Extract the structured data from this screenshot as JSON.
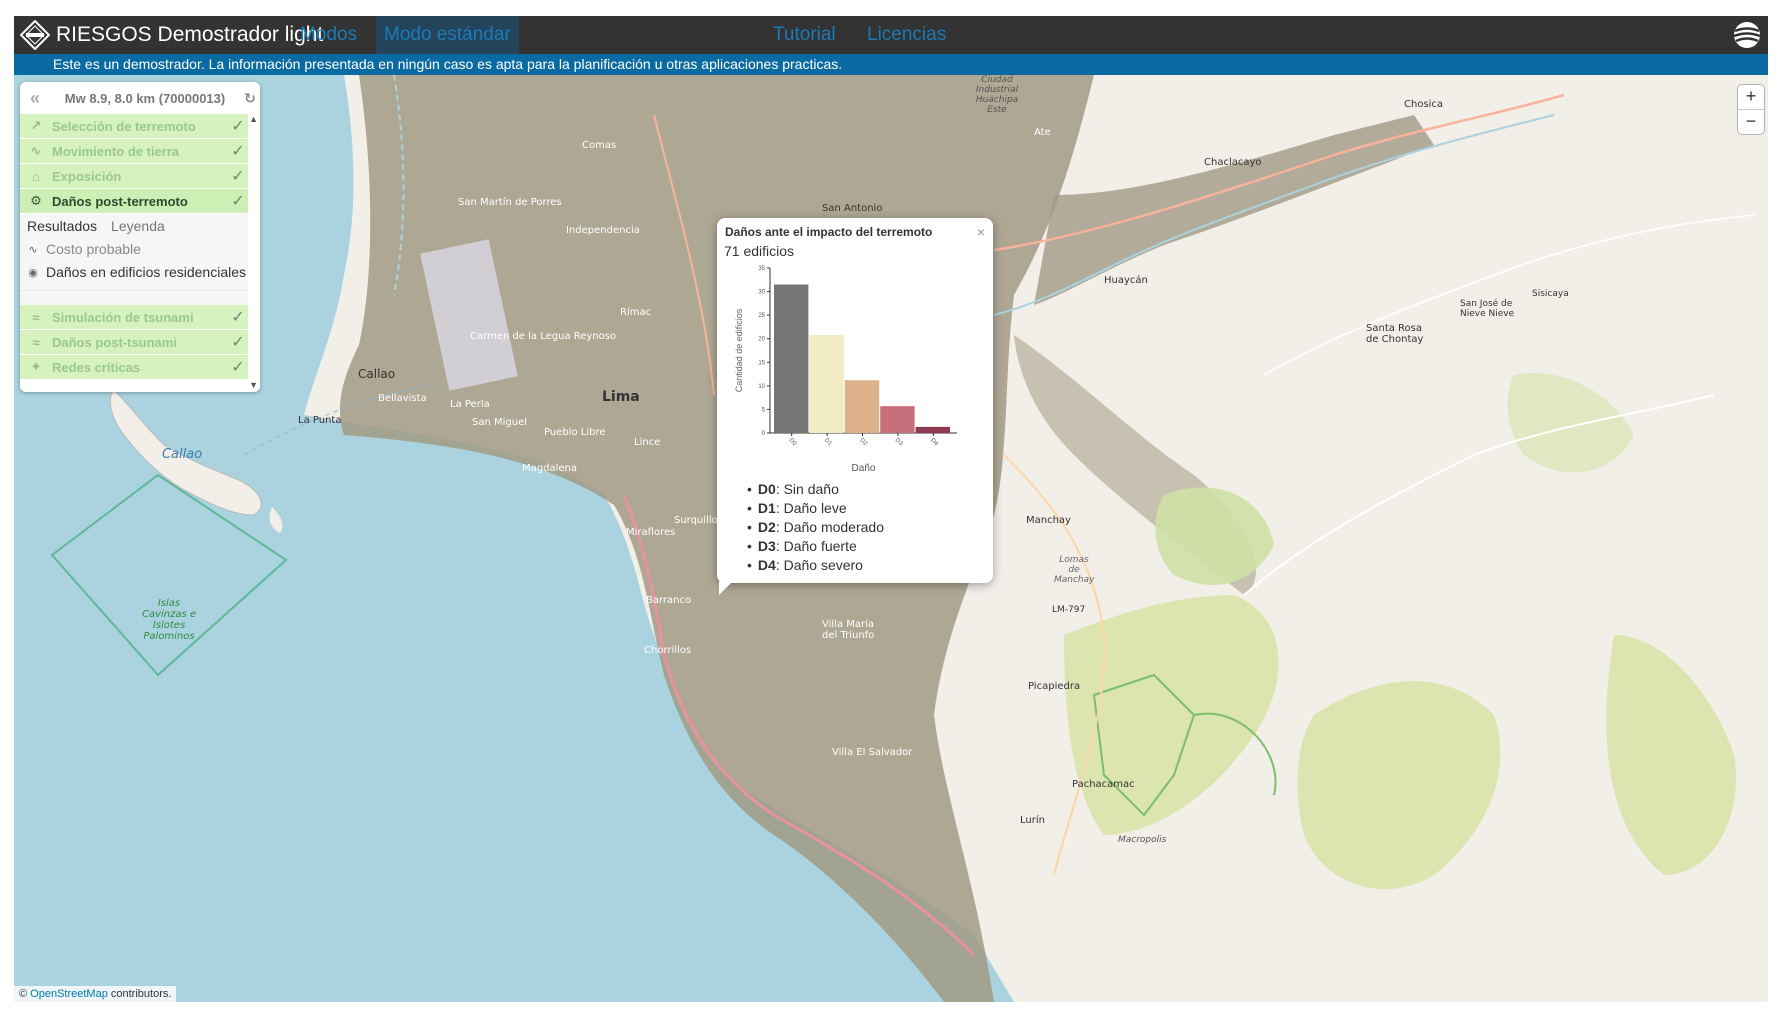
{
  "header": {
    "title": "RIESGOS Demostrador light",
    "nav": [
      {
        "label": "Modos",
        "active": false
      },
      {
        "label": "Modo estándar",
        "active": true
      },
      {
        "label": "Tutorial",
        "active": false
      },
      {
        "label": "Licencias",
        "active": false
      }
    ],
    "logo_icon": "riesgos-logo-icon",
    "lang_icon": "globe-icon"
  },
  "banner": {
    "text": "Este es un demostrador. La información presentada en ningún caso es apta para la planificación u otras aplicaciones practicas."
  },
  "panel": {
    "event": "Mw 8.9, 8.0 km (70000013)",
    "steps": [
      {
        "label": "Selección de terremoto",
        "icon": "earthquake-icon",
        "glyph": "↗",
        "active": false
      },
      {
        "label": "Movimiento de tierra",
        "icon": "ground-motion-icon",
        "glyph": "∿",
        "active": false
      },
      {
        "label": "Exposición",
        "icon": "house-icon",
        "glyph": "⌂",
        "active": false
      },
      {
        "label": "Daños post-terremoto",
        "icon": "damage-icon",
        "glyph": "⚙",
        "active": true
      }
    ],
    "tabs": {
      "results": "Resultados",
      "legend": "Leyenda"
    },
    "layers": [
      {
        "label": "Costo probable",
        "visible": false,
        "icon": "eye-off-icon"
      },
      {
        "label": "Daños en edificios residenciales",
        "visible": true,
        "icon": "eye-icon"
      }
    ],
    "steps_after": [
      {
        "label": "Simulación de tsunami",
        "icon": "wave-icon",
        "glyph": "≈"
      },
      {
        "label": "Daños post-tsunami",
        "icon": "tsunami-damage-icon",
        "glyph": "≈"
      },
      {
        "label": "Redes críticas",
        "icon": "network-icon",
        "glyph": "✦"
      }
    ]
  },
  "popup": {
    "title": "Daños ante el impacto del terremoto",
    "subtitle": "71 edificios",
    "legend": [
      {
        "code": "D0",
        "text": ": Sin daño"
      },
      {
        "code": "D1",
        "text": ": Daño leve"
      },
      {
        "code": "D2",
        "text": ": Daño moderado"
      },
      {
        "code": "D3",
        "text": ": Daño fuerte"
      },
      {
        "code": "D4",
        "text": ": Daño severo"
      }
    ]
  },
  "chart_data": {
    "type": "bar",
    "categories": [
      "D0",
      "D1",
      "D2",
      "D3",
      "D4"
    ],
    "values": [
      31.5,
      20.8,
      11.2,
      5.7,
      1.3
    ],
    "colors": [
      "#757575",
      "#f1ebc2",
      "#dfb18b",
      "#c7707c",
      "#8c3a52"
    ],
    "xlabel": "Daño",
    "ylabel": "Cantidad de edificios",
    "ylim": [
      0,
      35
    ],
    "yticks": [
      0,
      5,
      10,
      15,
      20,
      25,
      30,
      35
    ]
  },
  "map": {
    "zoom_in": "+",
    "zoom_out": "−",
    "attribution_prefix": "© ",
    "attribution_link": "OpenStreetMap",
    "attribution_suffix": " contributors.",
    "labels": {
      "lima": "Lima",
      "callao": "Callao",
      "callao_island": "Callao",
      "la_punta": "La Punta",
      "islas": "Islas Cavinzas e Islotes Palominos",
      "san_martin": "San Martín de Porres",
      "independencia": "Independencia",
      "magdalena": "Magdalena",
      "miraflores": "Miraflores",
      "barranco": "Barranco",
      "chorrillos": "Chorrillos",
      "villa_maria": "Villa María del Triunfo",
      "villa_el_salvador": "Villa El Salvador",
      "manchay": "Manchay",
      "lomas_manchay": "Lomas de Manchay",
      "chaclacayo": "Chaclacayo",
      "huaycan": "Huaycán",
      "santa_rosa": "Santa Rosa de Chontay",
      "nieve": "San José de Nieve Nieve",
      "sisicaya": "Sisicaya",
      "ciudad": "Ciudad Industrial Huachipa Este",
      "chosica": "Chosica",
      "pachacamac": "Pachacamac",
      "picapiedra": "Picapiedra",
      "lurin": "Lurín",
      "macropolis": "Macropolis",
      "lm797": "LM-797",
      "san_antonio": "San Antonio",
      "la_perla": "La Perla",
      "san_miguel": "San Miguel",
      "bellavista": "Bellavista",
      "pueblo_libre": "Pueblo Libre",
      "lince": "Lince",
      "surquillo": "Surquillo",
      "rimac": "Rímac",
      "carmen": "Carmen de la Legua Reynoso",
      "comas": "Comas",
      "ate": "Ate"
    }
  }
}
